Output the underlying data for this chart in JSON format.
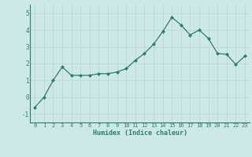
{
  "x": [
    0,
    1,
    2,
    3,
    4,
    5,
    6,
    7,
    8,
    9,
    10,
    11,
    12,
    13,
    14,
    15,
    16,
    17,
    18,
    19,
    20,
    21,
    22,
    23
  ],
  "y": [
    -0.6,
    0.0,
    1.0,
    1.8,
    1.3,
    1.3,
    1.3,
    1.4,
    1.4,
    1.5,
    1.7,
    2.2,
    2.6,
    3.15,
    3.9,
    4.75,
    4.3,
    3.7,
    4.0,
    3.5,
    2.6,
    2.55,
    1.95,
    2.45
  ],
  "line_color": "#2e7d6e",
  "bg_color": "#cce9e8",
  "grid_color": "#b8d8d7",
  "tick_color": "#2e7d6e",
  "label_color": "#2e7d6e",
  "xlabel": "Humidex (Indice chaleur)",
  "ylim": [
    -1.5,
    5.5
  ],
  "xlim": [
    -0.5,
    23.5
  ],
  "yticks": [
    -1,
    0,
    1,
    2,
    3,
    4,
    5
  ],
  "xticks": [
    0,
    1,
    2,
    3,
    4,
    5,
    6,
    7,
    8,
    9,
    10,
    11,
    12,
    13,
    14,
    15,
    16,
    17,
    18,
    19,
    20,
    21,
    22,
    23
  ]
}
